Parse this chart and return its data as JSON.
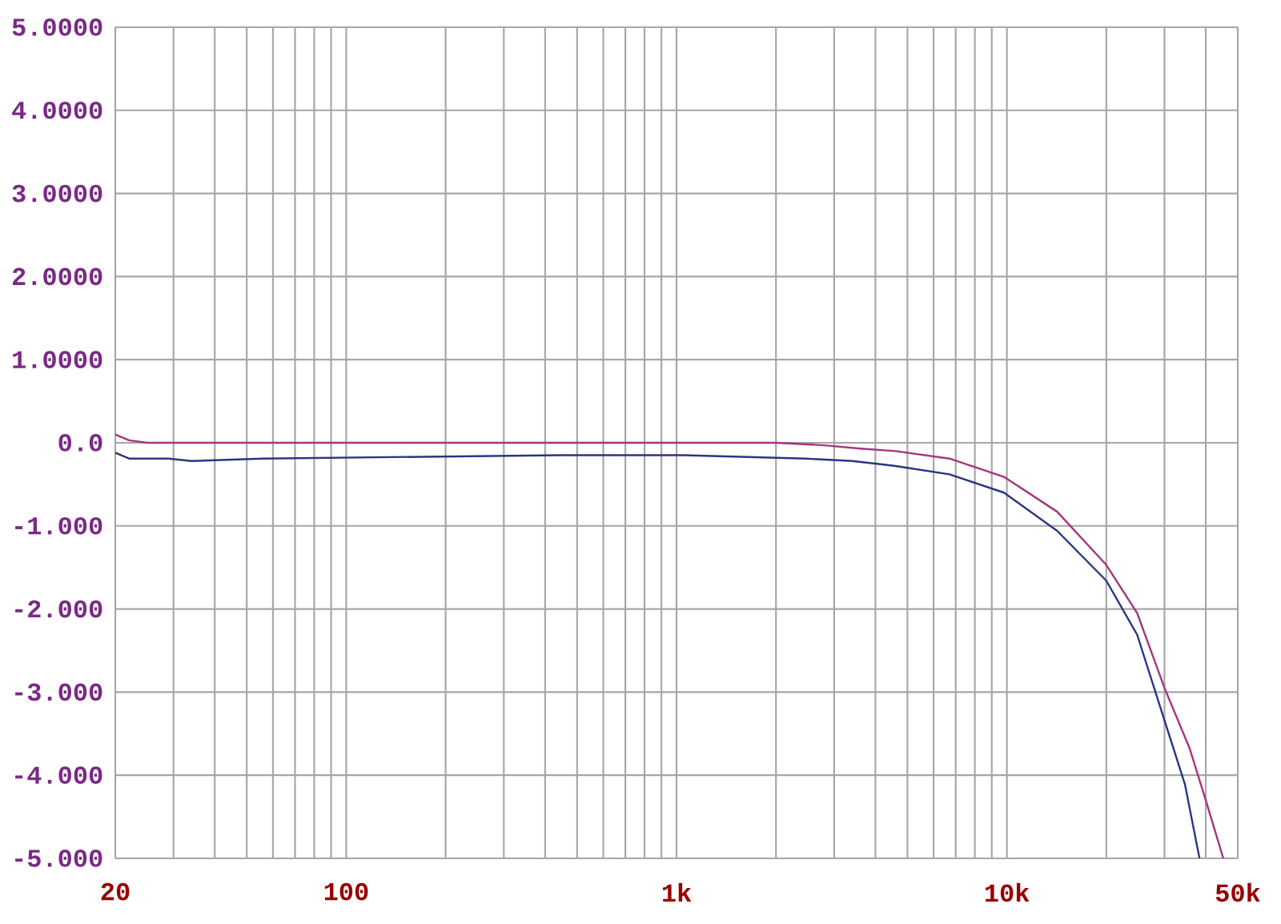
{
  "chart_data": {
    "type": "line",
    "log": "x",
    "grid": true,
    "xlim": [
      20,
      50000
    ],
    "ylim": [
      -5,
      5
    ],
    "xticks": [
      {
        "value": 20,
        "label": "20"
      },
      {
        "value": 30,
        "label": null
      },
      {
        "value": 40,
        "label": null
      },
      {
        "value": 50,
        "label": null
      },
      {
        "value": 60,
        "label": null
      },
      {
        "value": 70,
        "label": null
      },
      {
        "value": 80,
        "label": null
      },
      {
        "value": 90,
        "label": null
      },
      {
        "value": 100,
        "label": "100"
      },
      {
        "value": 200,
        "label": null
      },
      {
        "value": 300,
        "label": null
      },
      {
        "value": 400,
        "label": null
      },
      {
        "value": 500,
        "label": null
      },
      {
        "value": 600,
        "label": null
      },
      {
        "value": 700,
        "label": null
      },
      {
        "value": 800,
        "label": null
      },
      {
        "value": 900,
        "label": null
      },
      {
        "value": 1000,
        "label": "1k"
      },
      {
        "value": 2000,
        "label": null
      },
      {
        "value": 3000,
        "label": null
      },
      {
        "value": 4000,
        "label": null
      },
      {
        "value": 5000,
        "label": null
      },
      {
        "value": 6000,
        "label": null
      },
      {
        "value": 7000,
        "label": null
      },
      {
        "value": 8000,
        "label": null
      },
      {
        "value": 9000,
        "label": null
      },
      {
        "value": 10000,
        "label": "10k"
      },
      {
        "value": 20000,
        "label": null
      },
      {
        "value": 30000,
        "label": null
      },
      {
        "value": 40000,
        "label": null
      },
      {
        "value": 50000,
        "label": "50k"
      }
    ],
    "yticks": [
      {
        "value": 5,
        "label": "5.0000"
      },
      {
        "value": 4,
        "label": "4.0000"
      },
      {
        "value": 3,
        "label": "3.0000"
      },
      {
        "value": 2,
        "label": "2.0000"
      },
      {
        "value": 1,
        "label": "1.0000"
      },
      {
        "value": 0,
        "label": "0.0"
      },
      {
        "value": -1,
        "label": "-1.000"
      },
      {
        "value": -2,
        "label": "-2.000"
      },
      {
        "value": -3,
        "label": "-3.000"
      },
      {
        "value": -4,
        "label": "-4.000"
      },
      {
        "value": -5,
        "label": "-5.000"
      }
    ],
    "series": [
      {
        "color": "#a4367e",
        "x": [
          20,
          22,
          25,
          100,
          500,
          1000,
          2000,
          2800,
          3600,
          4600,
          6700,
          9800,
          14200,
          20000,
          24800,
          30000,
          35700,
          40000,
          45200
        ],
        "values": [
          0.1,
          0.03,
          0.0,
          0.0,
          0.0,
          0.0,
          0.0,
          -0.03,
          -0.07,
          -0.1,
          -0.19,
          -0.41,
          -0.83,
          -1.47,
          -2.05,
          -2.95,
          -3.67,
          -4.3,
          -5.0
        ]
      },
      {
        "color": "#2b3582",
        "x": [
          20,
          22,
          29,
          34,
          56,
          446,
          1050,
          2450,
          3400,
          4200,
          4600,
          6700,
          9800,
          14200,
          20000,
          24800,
          30000,
          34600,
          38300
        ],
        "values": [
          -0.12,
          -0.19,
          -0.19,
          -0.22,
          -0.19,
          -0.15,
          -0.15,
          -0.19,
          -0.22,
          -0.26,
          -0.28,
          -0.38,
          -0.6,
          -1.06,
          -1.66,
          -2.31,
          -3.34,
          -4.11,
          -5.0
        ]
      }
    ]
  }
}
